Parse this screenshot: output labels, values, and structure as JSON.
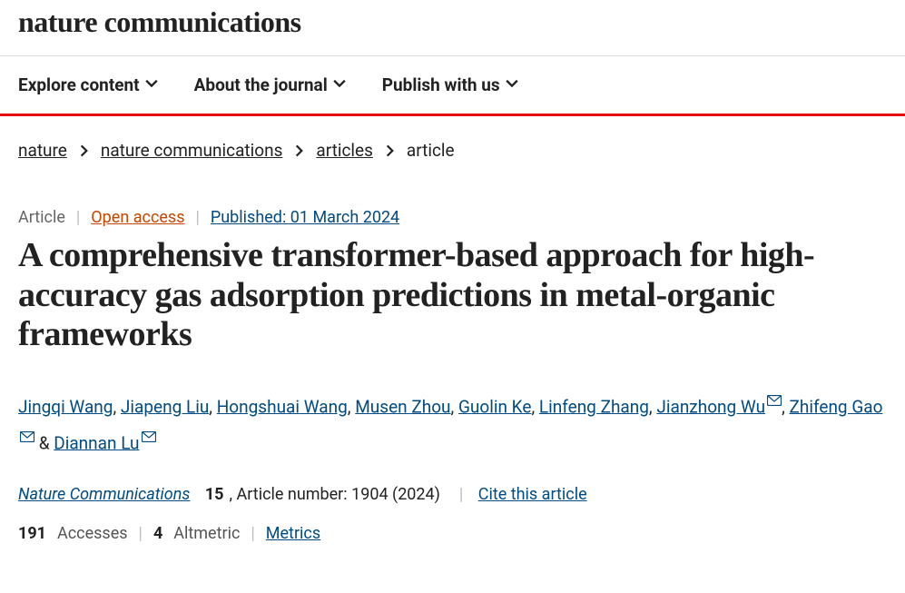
{
  "journal_name": "nature communications",
  "nav": {
    "items": [
      {
        "label": "Explore content"
      },
      {
        "label": "About the journal"
      },
      {
        "label": "Publish with us"
      }
    ]
  },
  "breadcrumbs": {
    "items": [
      {
        "label": "nature",
        "link": true
      },
      {
        "label": "nature communications",
        "link": true
      },
      {
        "label": "articles",
        "link": true
      },
      {
        "label": "article",
        "link": false
      }
    ]
  },
  "meta": {
    "category": "Article",
    "open_access": "Open access",
    "published": "Published: 01 March 2024"
  },
  "title": "A comprehensive transformer-based approach for high-accuracy gas adsorption predictions in metal-organic frameworks",
  "authors": [
    {
      "name": "Jingqi Wang",
      "corresponding": false
    },
    {
      "name": "Jiapeng Liu",
      "corresponding": false
    },
    {
      "name": "Hongshuai Wang",
      "corresponding": false
    },
    {
      "name": "Musen Zhou",
      "corresponding": false
    },
    {
      "name": "Guolin Ke",
      "corresponding": false
    },
    {
      "name": "Linfeng Zhang",
      "corresponding": false
    },
    {
      "name": "Jianzhong Wu",
      "corresponding": true
    },
    {
      "name": "Zhifeng Gao",
      "corresponding": true
    },
    {
      "name": "Diannan Lu",
      "corresponding": true
    }
  ],
  "citation": {
    "journal": "Nature Communications",
    "volume": "15",
    "article_label": ", Article number: 1904 (2024)",
    "cite_label": "Cite this article"
  },
  "metrics": {
    "accesses_count": "191",
    "accesses_label": "Accesses",
    "altmetric_count": "4",
    "altmetric_label": "Altmetric",
    "metrics_label": "Metrics"
  },
  "colors": {
    "link_blue": "#004b83",
    "open_orange": "#c64600",
    "brand_red": "#e30613",
    "text": "#222222",
    "muted": "#666666"
  }
}
